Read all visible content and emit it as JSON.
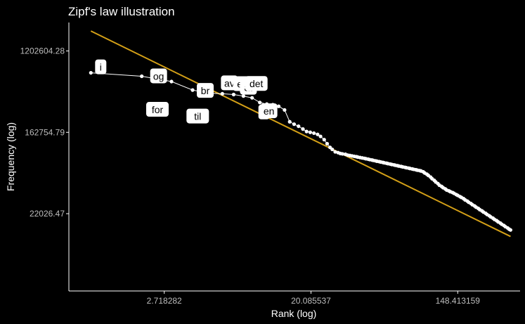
{
  "chart_data": {
    "type": "scatter",
    "title": "Zipf's law illustration",
    "xlabel": "Rank (log)",
    "ylabel": "Frequency (log)",
    "x_scale": "log",
    "y_scale": "log",
    "xlim_ln": [
      -0.3,
      5.85
    ],
    "ylim_ln": [
      8.1,
      14.7
    ],
    "x_ticks": [
      {
        "value": 2.718282,
        "label": "2.718282"
      },
      {
        "value": 20.085537,
        "label": "20.085537"
      },
      {
        "value": 148.413159,
        "label": "148.413159"
      }
    ],
    "y_ticks": [
      {
        "value": 22026.47,
        "label": "22026.47"
      },
      {
        "value": 162754.79,
        "label": "162754.79"
      },
      {
        "value": 1202604.28,
        "label": "1202604.28"
      }
    ],
    "grid": false,
    "colors": {
      "background": "#000000",
      "points": "#ffffff",
      "fit_line": "#d4a017",
      "label_box": "#ffffff"
    },
    "labeled_words": [
      {
        "word": "i",
        "rank": 1,
        "frequency": 703000
      },
      {
        "word": "og",
        "rank": 2,
        "frequency": 646000
      },
      {
        "word": "for",
        "rank": 3,
        "frequency": 567000
      },
      {
        "word": "br",
        "rank": 4,
        "frequency": 460000
      },
      {
        "word": "til",
        "rank": 5,
        "frequency": 426000
      },
      {
        "word": "av",
        "rank": 6,
        "frequency": 420000
      },
      {
        "word": "er",
        "rank": 7,
        "frequency": 412000
      },
      {
        "word": "at",
        "rank": 8,
        "frequency": 397000
      },
      {
        "word": "det",
        "rank": 9,
        "frequency": 380000
      },
      {
        "word": "å",
        "rank": 10,
        "frequency": 339000
      },
      {
        "word": "en",
        "rank": 11,
        "frequency": 326000
      }
    ],
    "other_points_ln": [
      [
        2.48,
        12.68
      ],
      [
        2.56,
        12.64
      ],
      [
        2.64,
        12.55
      ],
      [
        2.71,
        12.26
      ],
      [
        2.77,
        12.2
      ],
      [
        2.83,
        12.15
      ],
      [
        2.89,
        12.08
      ],
      [
        2.94,
        12.02
      ],
      [
        2.99,
        12.0
      ],
      [
        3.04,
        11.98
      ],
      [
        3.09,
        11.95
      ],
      [
        3.13,
        11.9
      ],
      [
        3.18,
        11.82
      ],
      [
        3.22,
        11.72
      ],
      [
        3.26,
        11.63
      ],
      [
        3.29,
        11.58
      ],
      [
        3.33,
        11.52
      ],
      [
        3.37,
        11.5
      ],
      [
        3.4,
        11.48
      ],
      [
        3.43,
        11.47
      ],
      [
        3.47,
        11.46
      ],
      [
        3.5,
        11.44
      ],
      [
        3.53,
        11.43
      ],
      [
        3.56,
        11.42
      ],
      [
        3.59,
        11.41
      ],
      [
        3.62,
        11.4
      ],
      [
        3.64,
        11.39
      ],
      [
        3.67,
        11.38
      ],
      [
        3.7,
        11.37
      ],
      [
        3.73,
        11.36
      ],
      [
        3.75,
        11.35
      ],
      [
        3.78,
        11.34
      ],
      [
        3.8,
        11.33
      ],
      [
        3.83,
        11.32
      ],
      [
        3.85,
        11.31
      ],
      [
        3.88,
        11.3
      ],
      [
        3.9,
        11.29
      ],
      [
        3.93,
        11.28
      ],
      [
        3.95,
        11.27
      ],
      [
        3.98,
        11.26
      ],
      [
        4.0,
        11.25
      ],
      [
        4.03,
        11.24
      ],
      [
        4.05,
        11.23
      ],
      [
        4.08,
        11.22
      ],
      [
        4.1,
        11.21
      ],
      [
        4.13,
        11.2
      ],
      [
        4.15,
        11.19
      ],
      [
        4.18,
        11.18
      ],
      [
        4.2,
        11.17
      ],
      [
        4.23,
        11.16
      ],
      [
        4.25,
        11.15
      ],
      [
        4.28,
        11.14
      ],
      [
        4.3,
        11.13
      ],
      [
        4.33,
        11.12
      ],
      [
        4.35,
        11.11
      ],
      [
        4.38,
        11.1
      ],
      [
        4.4,
        11.09
      ],
      [
        4.43,
        11.08
      ],
      [
        4.45,
        11.07
      ],
      [
        4.48,
        11.06
      ],
      [
        4.5,
        11.05
      ],
      [
        4.53,
        11.03
      ],
      [
        4.55,
        11.0
      ],
      [
        4.58,
        10.97
      ],
      [
        4.6,
        10.94
      ],
      [
        4.63,
        10.9
      ],
      [
        4.65,
        10.86
      ],
      [
        4.68,
        10.82
      ],
      [
        4.7,
        10.78
      ],
      [
        4.73,
        10.74
      ],
      [
        4.75,
        10.7
      ],
      [
        4.78,
        10.67
      ],
      [
        4.8,
        10.64
      ],
      [
        4.83,
        10.61
      ],
      [
        4.85,
        10.58
      ],
      [
        4.88,
        10.56
      ],
      [
        4.9,
        10.54
      ],
      [
        4.93,
        10.52
      ],
      [
        4.95,
        10.5
      ],
      [
        4.98,
        10.47
      ],
      [
        5.0,
        10.45
      ],
      [
        5.03,
        10.42
      ],
      [
        5.05,
        10.4
      ],
      [
        5.08,
        10.37
      ],
      [
        5.1,
        10.34
      ],
      [
        5.13,
        10.31
      ],
      [
        5.15,
        10.28
      ],
      [
        5.18,
        10.25
      ],
      [
        5.2,
        10.22
      ],
      [
        5.23,
        10.19
      ],
      [
        5.25,
        10.16
      ],
      [
        5.28,
        10.13
      ],
      [
        5.3,
        10.1
      ],
      [
        5.33,
        10.07
      ],
      [
        5.35,
        10.04
      ],
      [
        5.38,
        10.01
      ],
      [
        5.4,
        9.98
      ],
      [
        5.43,
        9.95
      ],
      [
        5.45,
        9.92
      ],
      [
        5.48,
        9.89
      ],
      [
        5.5,
        9.86
      ],
      [
        5.53,
        9.83
      ],
      [
        5.55,
        9.8
      ],
      [
        5.58,
        9.77
      ],
      [
        5.6,
        9.74
      ],
      [
        5.63,
        9.71
      ],
      [
        5.65,
        9.68
      ],
      [
        5.68,
        9.65
      ],
      [
        5.7,
        9.62
      ],
      [
        5.72,
        9.6
      ]
    ],
    "fit_line_ln": {
      "x": [
        0.0,
        5.72
      ],
      "y": [
        14.49,
        9.44
      ]
    }
  }
}
